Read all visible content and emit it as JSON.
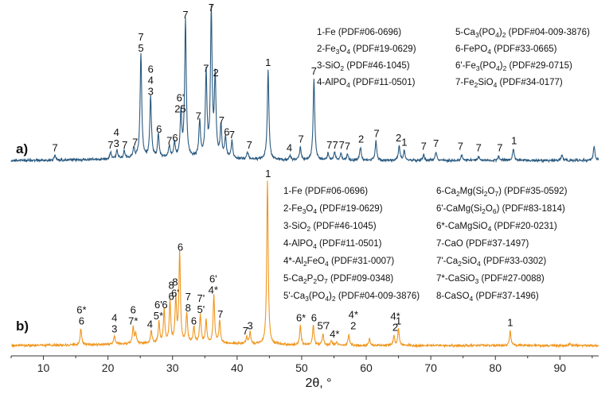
{
  "chart_data": {
    "type": "line",
    "xlabel": "2θ, °",
    "xlim": [
      5,
      96
    ],
    "x_ticks": [
      10,
      20,
      30,
      40,
      50,
      60,
      70,
      80,
      90
    ],
    "panels": [
      {
        "id": "a",
        "panel_label": "a)",
        "color": "#2a5a80",
        "legend": [
          [
            "1-Fe (PDF#06-0696)",
            "5-Ca",
            "3",
            "(PO",
            "4",
            ")",
            "2",
            " (PDF#04-009-3876)"
          ],
          [
            "2-Fe",
            "3",
            "O",
            "4",
            " (PDF#19-0629)",
            "",
            "",
            "",
            "6-FePO",
            "4",
            " (PDF#33-0665)"
          ],
          [
            "3-SiO",
            "2",
            " (PDF#46-1045)",
            "",
            "",
            "",
            "",
            "",
            "6'-Fe",
            "3",
            "(PO",
            "4",
            ")",
            "2",
            " (PDF#29-0715)"
          ],
          [
            "4-AlPO",
            "4",
            " (PDF#11-0501)",
            "",
            "",
            "",
            "",
            "",
            "7-Fe",
            "2",
            "SiO",
            "4",
            " (PDF#34-0177)"
          ]
        ],
        "peaks": [
          {
            "x": 11.8,
            "h": 0.03
          },
          {
            "x": 20.4,
            "h": 0.05
          },
          {
            "x": 21.4,
            "h": 0.06
          },
          {
            "x": 22.5,
            "h": 0.05
          },
          {
            "x": 24.0,
            "h": 0.07
          },
          {
            "x": 25.1,
            "h": 0.72
          },
          {
            "x": 26.6,
            "h": 0.42
          },
          {
            "x": 27.8,
            "h": 0.16
          },
          {
            "x": 29.5,
            "h": 0.08
          },
          {
            "x": 30.3,
            "h": 0.1
          },
          {
            "x": 31.3,
            "h": 0.3
          },
          {
            "x": 32.0,
            "h": 0.95
          },
          {
            "x": 34.2,
            "h": 0.25
          },
          {
            "x": 35.2,
            "h": 0.58
          },
          {
            "x": 36.0,
            "h": 1.0
          },
          {
            "x": 36.6,
            "h": 0.55
          },
          {
            "x": 37.5,
            "h": 0.22
          },
          {
            "x": 38.2,
            "h": 0.14
          },
          {
            "x": 39.2,
            "h": 0.12
          },
          {
            "x": 41.6,
            "h": 0.05
          },
          {
            "x": 44.8,
            "h": 0.62
          },
          {
            "x": 48.2,
            "h": 0.03
          },
          {
            "x": 49.8,
            "h": 0.09
          },
          {
            "x": 51.9,
            "h": 0.56
          },
          {
            "x": 54.1,
            "h": 0.05
          },
          {
            "x": 55.1,
            "h": 0.05
          },
          {
            "x": 56.1,
            "h": 0.05
          },
          {
            "x": 57.1,
            "h": 0.04
          },
          {
            "x": 59.1,
            "h": 0.09
          },
          {
            "x": 61.5,
            "h": 0.13
          },
          {
            "x": 65.1,
            "h": 0.1
          },
          {
            "x": 65.9,
            "h": 0.07
          },
          {
            "x": 68.9,
            "h": 0.04
          },
          {
            "x": 70.8,
            "h": 0.06
          },
          {
            "x": 74.8,
            "h": 0.04
          },
          {
            "x": 77.4,
            "h": 0.03
          },
          {
            "x": 80.5,
            "h": 0.03
          },
          {
            "x": 82.8,
            "h": 0.08
          },
          {
            "x": 90.3,
            "h": 0.04
          },
          {
            "x": 95.3,
            "h": 0.1
          }
        ],
        "labels": [
          {
            "x": 11.8,
            "t": "7"
          },
          {
            "x": 20.4,
            "t": "7"
          },
          {
            "x": 21.3,
            "t": "4\n3"
          },
          {
            "x": 22.6,
            "t": "7"
          },
          {
            "x": 24.2,
            "t": "7"
          },
          {
            "x": 25.1,
            "t": "7\n5"
          },
          {
            "x": 26.6,
            "t": "6\n4\n3"
          },
          {
            "x": 27.9,
            "t": "6"
          },
          {
            "x": 29.5,
            "t": "7"
          },
          {
            "x": 30.4,
            "t": "6"
          },
          {
            "x": 31.2,
            "t": "6'\n25"
          },
          {
            "x": 32.0,
            "t": "7"
          },
          {
            "x": 34.0,
            "t": "7"
          },
          {
            "x": 35.2,
            "t": "7"
          },
          {
            "x": 36.0,
            "t": "7"
          },
          {
            "x": 36.7,
            "t": "2"
          },
          {
            "x": 37.6,
            "t": "7"
          },
          {
            "x": 38.4,
            "t": "6"
          },
          {
            "x": 39.2,
            "t": "7"
          },
          {
            "x": 41.9,
            "t": "7"
          },
          {
            "x": 44.8,
            "t": "1"
          },
          {
            "x": 48.1,
            "t": "4"
          },
          {
            "x": 49.9,
            "t": "7"
          },
          {
            "x": 51.9,
            "t": "7"
          },
          {
            "x": 54.3,
            "t": "7"
          },
          {
            "x": 55.2,
            "t": "7"
          },
          {
            "x": 56.2,
            "t": "7"
          },
          {
            "x": 57.1,
            "t": "7"
          },
          {
            "x": 59.2,
            "t": "2"
          },
          {
            "x": 61.6,
            "t": "7"
          },
          {
            "x": 65.0,
            "t": "2"
          },
          {
            "x": 65.9,
            "t": "1"
          },
          {
            "x": 68.9,
            "t": "7"
          },
          {
            "x": 70.8,
            "t": "7"
          },
          {
            "x": 74.6,
            "t": "7"
          },
          {
            "x": 77.4,
            "t": "7"
          },
          {
            "x": 80.7,
            "t": "7"
          },
          {
            "x": 82.9,
            "t": "1"
          }
        ]
      },
      {
        "id": "b",
        "panel_label": "b)",
        "color": "#f0961e",
        "legend": [
          [
            "1-Fe (PDF#06-0696)",
            "6-Ca",
            "2",
            "Mg(Si",
            "2",
            "O",
            "7",
            ") (PDF#35-0592)"
          ],
          [
            "2-Fe",
            "3",
            "O",
            "4",
            " (PDF#19-0629)",
            "",
            "",
            "",
            "6'-CaMg(Si",
            "2",
            "O",
            "6",
            ") (PDF#83-1814)"
          ],
          [
            "3-SiO",
            "2",
            " (PDF#46-1045)",
            "",
            "",
            "",
            "",
            "",
            "6*-CaMgSiO",
            "4",
            " (PDF#20-0231)"
          ],
          [
            "4-AlPO",
            "4",
            " (PDF#11-0501)",
            "",
            "",
            "",
            "",
            "",
            "7-CaO (PDF#37-1497)"
          ],
          [
            "4*-Al",
            "2",
            "FeO",
            "4",
            " (PDF#31-0007)",
            "",
            "",
            "",
            "7'-Ca",
            "2",
            "SiO",
            "4",
            " (PDF#33-0302)"
          ],
          [
            "5-Ca",
            "2",
            "P",
            "2",
            "O",
            "7",
            " (PDF#09-0348)",
            "",
            "7*-CaSiO",
            "3",
            " (PDF#27-0088)"
          ],
          [
            "5'-Ca",
            "3",
            "(PO",
            "4",
            ")",
            "2",
            " (PDF#04-009-3876)",
            "",
            "8-CaSO",
            "4",
            " (PDF#37-1496)"
          ]
        ],
        "peaks": [
          {
            "x": 15.8,
            "h": 0.1
          },
          {
            "x": 21.0,
            "h": 0.05
          },
          {
            "x": 23.9,
            "h": 0.1
          },
          {
            "x": 24.3,
            "h": 0.06
          },
          {
            "x": 26.7,
            "h": 0.08
          },
          {
            "x": 27.9,
            "h": 0.13
          },
          {
            "x": 28.7,
            "h": 0.2
          },
          {
            "x": 29.6,
            "h": 0.25
          },
          {
            "x": 30.5,
            "h": 0.27
          },
          {
            "x": 31.1,
            "h": 0.55
          },
          {
            "x": 32.2,
            "h": 0.18
          },
          {
            "x": 33.3,
            "h": 0.1
          },
          {
            "x": 34.3,
            "h": 0.17
          },
          {
            "x": 35.2,
            "h": 0.14
          },
          {
            "x": 36.4,
            "h": 0.29
          },
          {
            "x": 37.3,
            "h": 0.14
          },
          {
            "x": 41.5,
            "h": 0.04
          },
          {
            "x": 42.0,
            "h": 0.07
          },
          {
            "x": 44.7,
            "h": 1.0
          },
          {
            "x": 49.8,
            "h": 0.12
          },
          {
            "x": 51.8,
            "h": 0.12
          },
          {
            "x": 53.3,
            "h": 0.07
          },
          {
            "x": 54.6,
            "h": 0.03
          },
          {
            "x": 55.4,
            "h": 0.02
          },
          {
            "x": 57.3,
            "h": 0.07
          },
          {
            "x": 60.5,
            "h": 0.04
          },
          {
            "x": 64.3,
            "h": 0.06
          },
          {
            "x": 65.0,
            "h": 0.1
          },
          {
            "x": 82.3,
            "h": 0.09
          },
          {
            "x": 91.5,
            "h": 0.01
          }
        ],
        "labels": [
          {
            "x": 15.9,
            "t": "6*\n6"
          },
          {
            "x": 21.0,
            "t": "4\n3"
          },
          {
            "x": 23.9,
            "t": "6\n7*"
          },
          {
            "x": 26.5,
            "t": "4"
          },
          {
            "x": 27.8,
            "t": "6'\n5*"
          },
          {
            "x": 28.8,
            "t": "6"
          },
          {
            "x": 29.8,
            "t": "8\n6"
          },
          {
            "x": 30.4,
            "t": "8\n6'"
          },
          {
            "x": 31.2,
            "t": "6"
          },
          {
            "x": 32.4,
            "t": "7\n8"
          },
          {
            "x": 33.3,
            "t": "6"
          },
          {
            "x": 34.4,
            "t": "7'\n5'"
          },
          {
            "x": 36.3,
            "t": "6'\n4*"
          },
          {
            "x": 37.4,
            "t": "7"
          },
          {
            "x": 41.3,
            "t": "7"
          },
          {
            "x": 42.0,
            "t": "3"
          },
          {
            "x": 44.8,
            "t": "1"
          },
          {
            "x": 49.9,
            "t": "6*"
          },
          {
            "x": 51.9,
            "t": "6"
          },
          {
            "x": 53.0,
            "t": "5'"
          },
          {
            "x": 53.9,
            "t": "7"
          },
          {
            "x": 55.1,
            "t": "4*"
          },
          {
            "x": 58.0,
            "t": "4*\n2"
          },
          {
            "x": 64.5,
            "t": "4*\n2"
          },
          {
            "x": 65.0,
            "t": "1"
          },
          {
            "x": 82.3,
            "t": "1"
          }
        ]
      }
    ]
  }
}
